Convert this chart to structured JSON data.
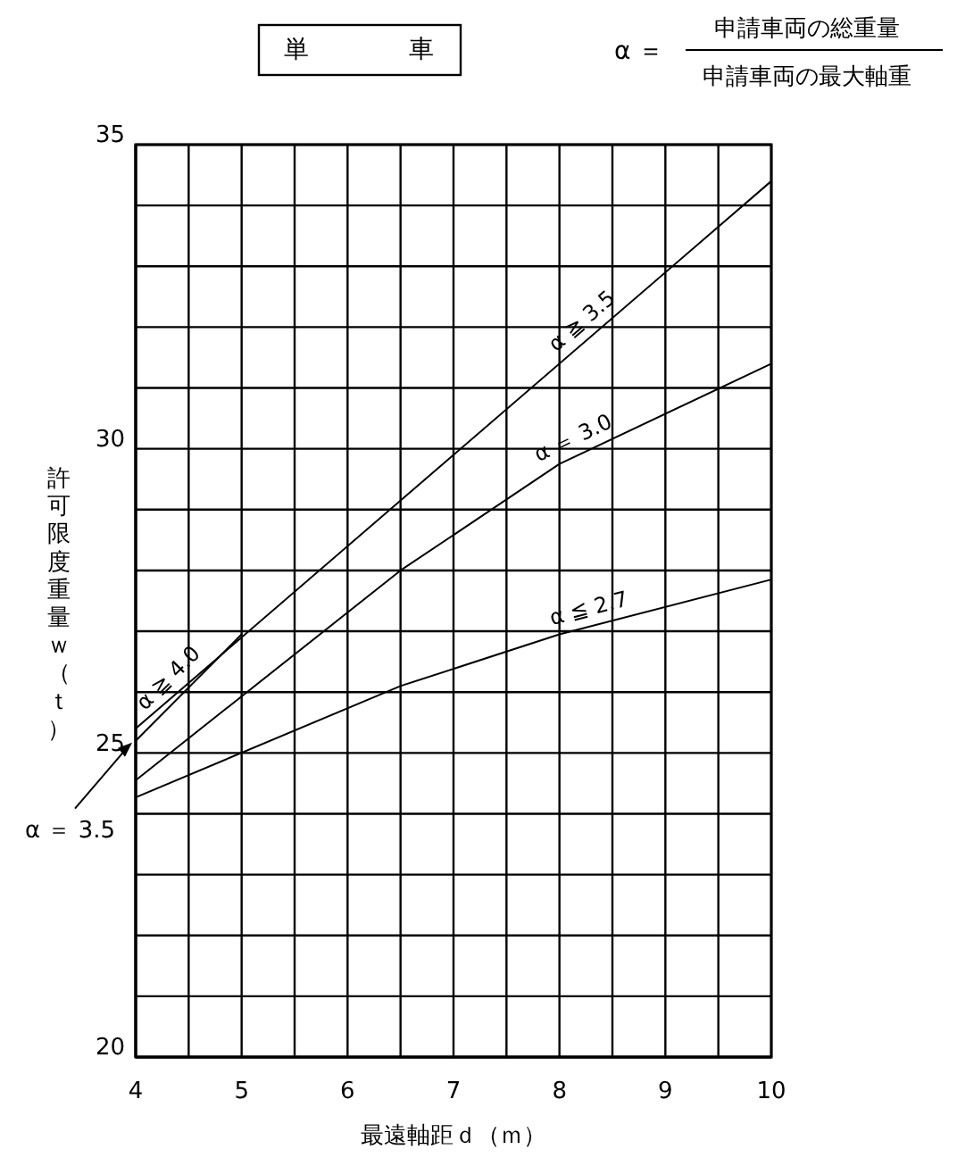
{
  "chart_data": {
    "type": "line",
    "title": "単　　　　車",
    "xlabel": "最遠軸距ｄ（ｍ）",
    "ylabel": "許可限度重量ｗ（ｔ）",
    "annotations": [
      "α ＝",
      "申請車両の総重量",
      "申請車両の最大軸重",
      {
        "text": "α ＝ 3.5",
        "x": 4,
        "y": 25.2
      }
    ],
    "xlim": [
      4,
      10
    ],
    "ylim": [
      20,
      35
    ],
    "xticks": [
      4,
      {
        "value": 4.5,
        "label": null
      },
      5,
      {
        "value": 5.5,
        "label": null
      },
      6,
      {
        "value": 6.5,
        "label": null
      },
      7,
      {
        "value": 7.5,
        "label": null
      },
      8,
      {
        "value": 8.5,
        "label": null
      },
      9,
      {
        "value": 9.5,
        "label": null
      },
      10
    ],
    "yticks": [
      20,
      {
        "value": 21,
        "label": null
      },
      {
        "value": 22,
        "label": null
      },
      {
        "value": 23,
        "label": null
      },
      {
        "value": 24,
        "label": null
      },
      25,
      {
        "value": 26,
        "label": null
      },
      {
        "value": 27,
        "label": null
      },
      {
        "value": 28,
        "label": null
      },
      {
        "value": 29,
        "label": null
      },
      30,
      {
        "value": 31,
        "label": null
      },
      {
        "value": 32,
        "label": null
      },
      {
        "value": 33,
        "label": null
      },
      {
        "value": 34,
        "label": null
      },
      35
    ],
    "grid": true,
    "legend": false,
    "marker": "none",
    "line_style": "solid",
    "series": [
      {
        "name": "α ≧ 3.5",
        "color": "#000000",
        "x": [
          4,
          7,
          10
        ],
        "values": [
          25.4,
          29.9,
          34.4
        ]
      },
      {
        "name": "α ＝ 3.0",
        "color": "#000000",
        "x": [
          4,
          6.5,
          8,
          10
        ],
        "values": [
          24.55,
          28.0,
          29.75,
          31.4
        ]
      },
      {
        "name": "α ≦ 2.7",
        "color": "#000000",
        "x": [
          4,
          6.5,
          8,
          10
        ],
        "values": [
          24.27,
          26.1,
          26.95,
          27.85
        ]
      },
      {
        "name": "α ≧ 4.0",
        "color": "#000000",
        "x": [
          4,
          5
        ],
        "values": [
          25.2,
          26.95
        ]
      }
    ]
  }
}
